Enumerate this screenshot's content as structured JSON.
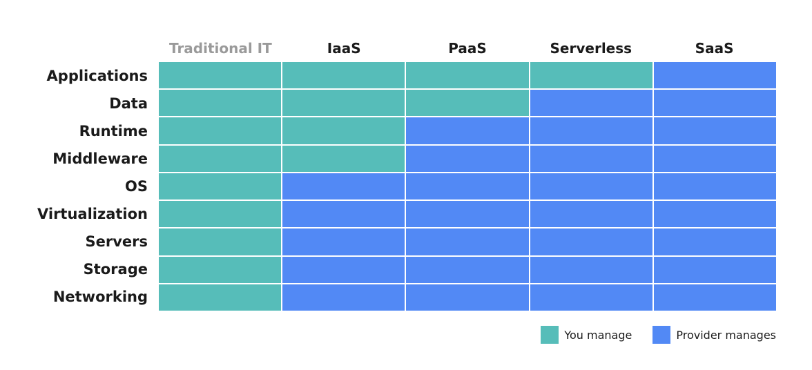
{
  "colors": {
    "you": "#56bdb9",
    "provider": "#5289f5"
  },
  "columns": [
    {
      "label": "Traditional IT",
      "muted": true,
      "you_count": 9
    },
    {
      "label": "IaaS",
      "muted": false,
      "you_count": 4
    },
    {
      "label": "PaaS",
      "muted": false,
      "you_count": 2
    },
    {
      "label": "Serverless",
      "muted": false,
      "you_count": 1
    },
    {
      "label": "SaaS",
      "muted": false,
      "you_count": 0
    }
  ],
  "rows": [
    "Applications",
    "Data",
    "Runtime",
    "Middleware",
    "OS",
    "Virtualization",
    "Servers",
    "Storage",
    "Networking"
  ],
  "legend": {
    "you_label": "You manage",
    "provider_label": "Provider manages"
  }
}
